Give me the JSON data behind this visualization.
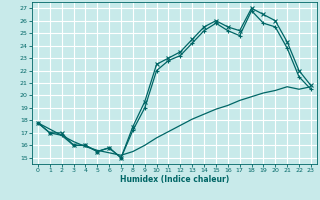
{
  "title": "",
  "xlabel": "Humidex (Indice chaleur)",
  "ylabel": "",
  "bg_color": "#c8eaea",
  "grid_color": "#ffffff",
  "line_color": "#006666",
  "xlim": [
    -0.5,
    23.5
  ],
  "ylim": [
    14.5,
    27.5
  ],
  "xticks": [
    0,
    1,
    2,
    3,
    4,
    5,
    6,
    7,
    8,
    9,
    10,
    11,
    12,
    13,
    14,
    15,
    16,
    17,
    18,
    19,
    20,
    21,
    22,
    23
  ],
  "yticks": [
    15,
    16,
    17,
    18,
    19,
    20,
    21,
    22,
    23,
    24,
    25,
    26,
    27
  ],
  "line1_x": [
    0,
    1,
    2,
    3,
    4,
    5,
    6,
    7,
    8,
    9,
    10,
    11,
    12,
    13,
    14,
    15,
    16,
    17,
    18,
    19,
    20,
    21,
    22,
    23
  ],
  "line1_y": [
    17.8,
    17.0,
    17.0,
    16.0,
    16.0,
    15.5,
    15.8,
    15.0,
    17.5,
    19.5,
    22.5,
    23.0,
    23.5,
    24.5,
    25.5,
    26.0,
    25.5,
    25.2,
    27.0,
    26.5,
    26.0,
    24.3,
    22.0,
    20.8
  ],
  "line2_x": [
    0,
    1,
    2,
    3,
    4,
    5,
    6,
    7,
    8,
    9,
    10,
    11,
    12,
    13,
    14,
    15,
    16,
    17,
    18,
    19,
    20,
    21,
    22,
    23
  ],
  "line2_y": [
    17.8,
    17.0,
    16.8,
    16.0,
    16.0,
    15.5,
    15.8,
    15.0,
    17.2,
    19.0,
    22.0,
    22.8,
    23.2,
    24.2,
    25.2,
    25.8,
    25.2,
    24.8,
    26.8,
    25.8,
    25.5,
    23.8,
    21.5,
    20.5
  ],
  "line3_x": [
    0,
    1,
    2,
    3,
    4,
    5,
    6,
    7,
    8,
    9,
    10,
    11,
    12,
    13,
    14,
    15,
    16,
    17,
    18,
    19,
    20,
    21,
    22,
    23
  ],
  "line3_y": [
    17.8,
    17.3,
    16.8,
    16.3,
    15.9,
    15.6,
    15.4,
    15.2,
    15.5,
    16.0,
    16.6,
    17.1,
    17.6,
    18.1,
    18.5,
    18.9,
    19.2,
    19.6,
    19.9,
    20.2,
    20.4,
    20.7,
    20.5,
    20.7
  ]
}
